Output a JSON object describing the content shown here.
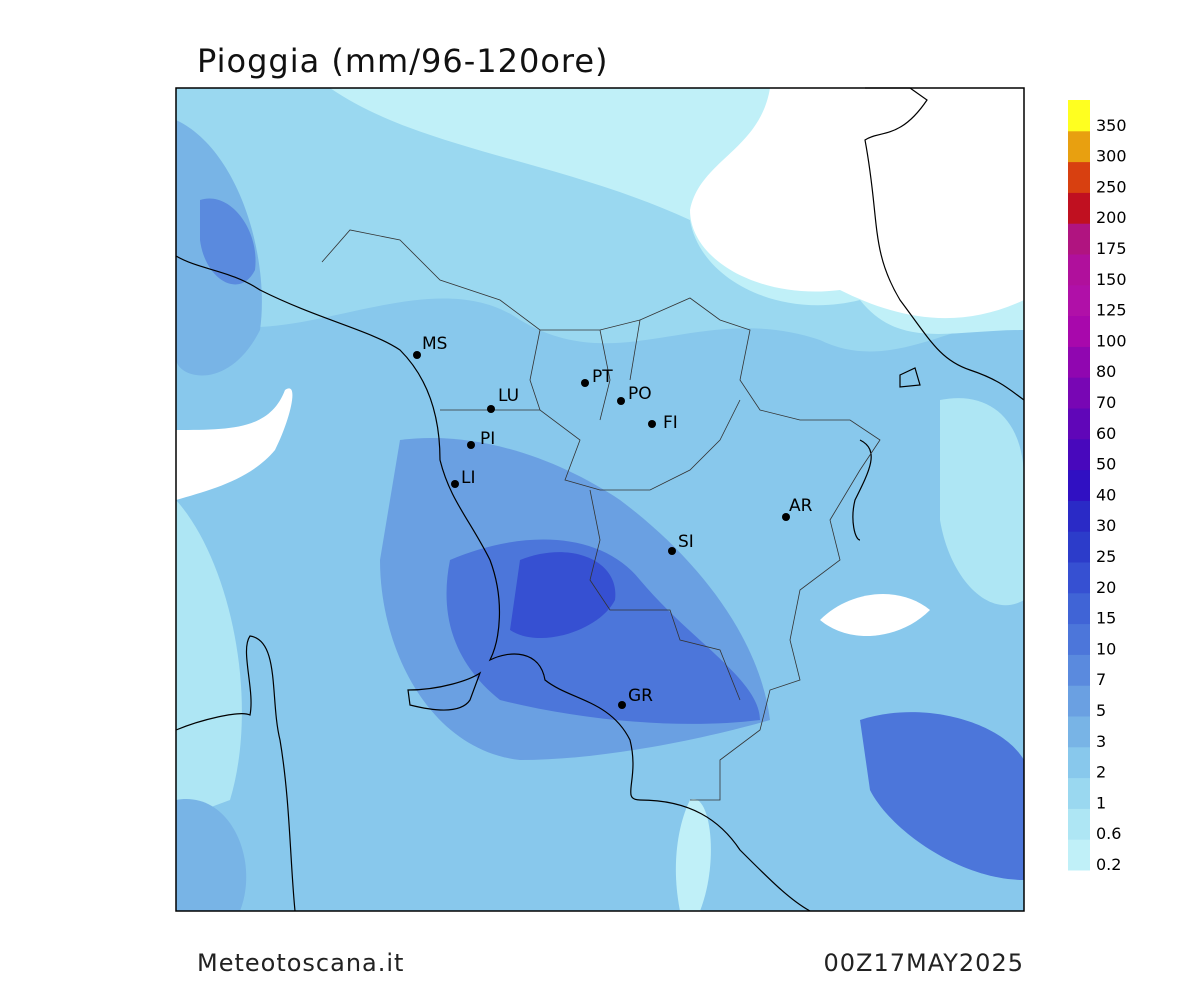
{
  "header": {
    "title": "Pioggia (mm/96-120ore)"
  },
  "footer": {
    "source": "Meteotoscana.it",
    "date": "00Z17MAY2025"
  },
  "cities": [
    "MS",
    "LU",
    "PT",
    "PO",
    "FI",
    "PI",
    "LI",
    "AR",
    "SI",
    "GR"
  ],
  "legend": {
    "labels": [
      0.2,
      0.6,
      1,
      2,
      3,
      5,
      7,
      10,
      15,
      20,
      25,
      30,
      40,
      50,
      60,
      70,
      80,
      100,
      125,
      150,
      175,
      200,
      250,
      300,
      350
    ],
    "colors": [
      "#c0f0f8",
      "#aee6f4",
      "#9ad8f0",
      "#88c8ec",
      "#78b4e6",
      "#6aa0e2",
      "#5a8ade",
      "#4c76da",
      "#4064d6",
      "#3650d2",
      "#2c3cca",
      "#2a2ac6",
      "#3010c2",
      "#4808bc",
      "#6006b8",
      "#7806b4",
      "#9006b0",
      "#a808ac",
      "#b010a8",
      "#b0109c",
      "#b01480",
      "#c01020",
      "#d84010",
      "#e8a010",
      "#ffff20"
    ]
  }
}
